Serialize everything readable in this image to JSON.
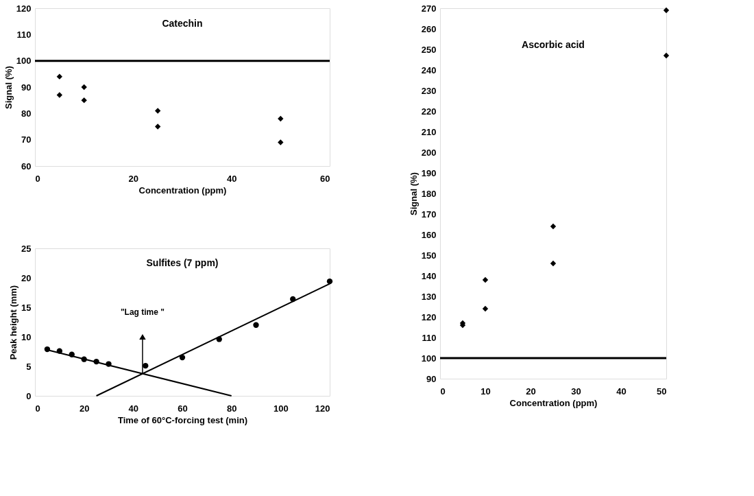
{
  "chart_data": [
    {
      "type": "scatter",
      "title": "Catechin",
      "xlabel": "Concentration (ppm)",
      "ylabel": "Signal (%)",
      "xlim": [
        0,
        60
      ],
      "xticks": [
        0,
        20,
        40,
        60
      ],
      "ylim": [
        60,
        120
      ],
      "yticks": [
        60,
        70,
        80,
        90,
        100,
        110,
        120
      ],
      "grid": false,
      "marker": "diamond",
      "series": [
        {
          "color": "#000000",
          "x": [
            5,
            5,
            10,
            10,
            25,
            25,
            50,
            50
          ],
          "values": [
            94,
            87,
            90,
            85,
            81,
            75,
            78,
            69
          ]
        }
      ],
      "ref_lines": [
        {
          "axis": "y",
          "value": 100,
          "color": "#000000"
        }
      ]
    },
    {
      "type": "scatter",
      "title": "Sulfites (7 ppm)",
      "xlabel": "Time of 60°C-forcing test (min)",
      "ylabel": "Peak height (mm)",
      "xlim": [
        0,
        120
      ],
      "xticks": [
        0,
        20,
        40,
        60,
        80,
        100,
        120
      ],
      "ylim": [
        0,
        25
      ],
      "yticks": [
        0,
        5,
        10,
        15,
        20,
        25
      ],
      "grid": false,
      "marker": "circle",
      "series": [
        {
          "color": "#000000",
          "x": [
            5,
            10,
            15,
            20,
            25,
            30,
            45,
            60,
            75,
            90,
            105,
            120
          ],
          "values": [
            7.9,
            7.6,
            7.0,
            6.2,
            5.8,
            5.4,
            5.1,
            6.5,
            9.6,
            12.0,
            16.4,
            19.4
          ]
        },
        {
          "type": "line",
          "color": "#000000",
          "marker": "none",
          "x": [
            5,
            80
          ],
          "values": [
            7.8,
            0
          ]
        },
        {
          "type": "line",
          "color": "#000000",
          "marker": "none",
          "x": [
            25,
            120
          ],
          "values": [
            0,
            19
          ]
        }
      ],
      "annotations": [
        {
          "text": "\"Lag time \"",
          "x": 43.8,
          "y": 10
        }
      ]
    },
    {
      "type": "scatter",
      "title": "Ascorbic acid",
      "xlabel": "Concentration (ppm)",
      "ylabel": "Signal (%)",
      "xlim": [
        0,
        50
      ],
      "xticks": [
        0,
        10,
        20,
        30,
        40,
        50
      ],
      "ylim": [
        90,
        270
      ],
      "yticks": [
        90,
        100,
        110,
        120,
        130,
        140,
        150,
        160,
        170,
        180,
        190,
        200,
        210,
        220,
        230,
        240,
        250,
        260,
        270
      ],
      "grid": false,
      "marker": "diamond",
      "series": [
        {
          "color": "#000000",
          "x": [
            5,
            5,
            10,
            10,
            25,
            25,
            50,
            50
          ],
          "values": [
            117,
            116,
            138,
            124,
            164,
            146,
            269,
            247
          ]
        }
      ],
      "ref_lines": [
        {
          "axis": "y",
          "value": 100,
          "color": "#000000"
        }
      ]
    }
  ]
}
